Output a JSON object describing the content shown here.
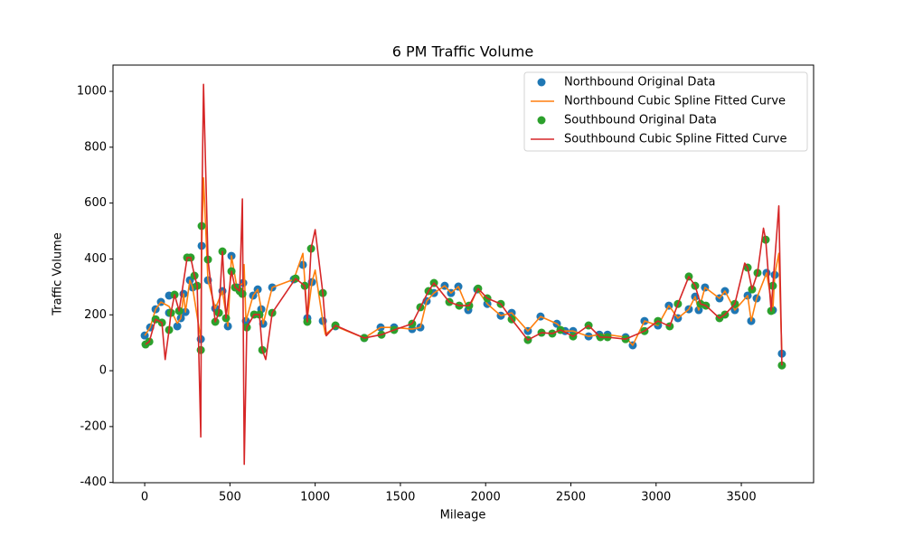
{
  "chart_data": {
    "type": "scatter",
    "title": "6 PM Traffic Volume",
    "x_label": "Mileage",
    "y_label": "Traffic Volume",
    "xlim": [
      -186,
      3924
    ],
    "ylim": [
      -401,
      1094
    ],
    "xticks": [
      0,
      500,
      1000,
      1500,
      2000,
      2500,
      3000,
      3500
    ],
    "yticks": [
      -400,
      -200,
      0,
      200,
      400,
      600,
      800,
      1000
    ],
    "legend": "upper right",
    "series": [
      {
        "name": "Northbound Original Data",
        "type": "scatter",
        "color": "#1f77b4",
        "x": [
          0,
          32,
          64,
          95,
          143,
          143,
          191,
          212,
          228,
          239,
          265,
          281,
          329,
          334,
          371,
          414,
          456,
          488,
          509,
          541,
          578,
          594,
          636,
          663,
          684,
          695,
          748,
          875,
          928,
          954,
          981,
          1045,
          1119,
          1288,
          1384,
          1463,
          1569,
          1617,
          1654,
          1697,
          1760,
          1797,
          1840,
          1898,
          1951,
          2010,
          2089,
          2153,
          2248,
          2322,
          2418,
          2466,
          2513,
          2604,
          2667,
          2715,
          2821,
          2863,
          2932,
          3011,
          3075,
          3128,
          3192,
          3229,
          3250,
          3287,
          3372,
          3404,
          3462,
          3537,
          3558,
          3590,
          3648,
          3685,
          3696,
          3738
        ],
        "values": [
          126,
          155,
          220,
          246,
          269,
          207,
          159,
          188,
          275,
          210,
          324,
          298,
          113,
          447,
          324,
          223,
          285,
          159,
          411,
          298,
          314,
          178,
          269,
          291,
          220,
          168,
          298,
          327,
          379,
          188,
          317,
          178,
          159,
          117,
          155,
          155,
          149,
          155,
          249,
          278,
          304,
          278,
          301,
          217,
          291,
          239,
          197,
          207,
          142,
          194,
          168,
          142,
          142,
          123,
          129,
          129,
          120,
          91,
          178,
          162,
          233,
          188,
          220,
          265,
          217,
          298,
          259,
          285,
          217,
          269,
          178,
          259,
          350,
          217,
          343,
          61
        ]
      },
      {
        "name": "Northbound Cubic Spline Fitted Curve",
        "type": "line",
        "color": "#ff7f0e",
        "x": [
          0,
          32,
          64,
          95,
          143,
          191,
          212,
          228,
          239,
          265,
          281,
          329,
          334,
          345,
          371,
          414,
          456,
          488,
          509,
          541,
          578,
          583,
          594,
          636,
          663,
          684,
          695,
          748,
          875,
          928,
          954,
          981,
          1000,
          1045,
          1060,
          1119,
          1288,
          1384,
          1463,
          1569,
          1617,
          1654,
          1697,
          1760,
          1797,
          1840,
          1898,
          1951,
          2010,
          2089,
          2153,
          2248,
          2322,
          2418,
          2466,
          2513,
          2604,
          2667,
          2715,
          2821,
          2863,
          2932,
          3011,
          3075,
          3128,
          3192,
          3229,
          3250,
          3287,
          3372,
          3404,
          3462,
          3537,
          3558,
          3590,
          3648,
          3685,
          3696,
          3720,
          3738
        ],
        "values": [
          126,
          155,
          220,
          246,
          230,
          170,
          188,
          275,
          210,
          324,
          298,
          113,
          447,
          690,
          324,
          223,
          285,
          159,
          411,
          298,
          314,
          380,
          178,
          269,
          291,
          220,
          168,
          298,
          327,
          420,
          188,
          317,
          360,
          178,
          130,
          159,
          117,
          155,
          155,
          149,
          155,
          249,
          278,
          304,
          278,
          301,
          217,
          291,
          239,
          197,
          207,
          142,
          194,
          168,
          142,
          142,
          123,
          129,
          129,
          120,
          91,
          178,
          162,
          233,
          188,
          220,
          265,
          217,
          298,
          259,
          285,
          217,
          269,
          178,
          259,
          350,
          217,
          343,
          420,
          61
        ]
      },
      {
        "name": "Southbound Original Data",
        "type": "scatter",
        "color": "#2ca02c",
        "x": [
          5,
          27,
          64,
          101,
          143,
          154,
          175,
          202,
          249,
          270,
          292,
          308,
          329,
          334,
          371,
          414,
          435,
          456,
          477,
          509,
          530,
          557,
          573,
          599,
          642,
          673,
          690,
          748,
          885,
          939,
          954,
          976,
          1045,
          1119,
          1288,
          1389,
          1463,
          1569,
          1617,
          1665,
          1697,
          1787,
          1845,
          1903,
          1956,
          2010,
          2089,
          2153,
          2248,
          2328,
          2391,
          2439,
          2513,
          2604,
          2673,
          2715,
          2821,
          2932,
          3011,
          3080,
          3128,
          3192,
          3229,
          3261,
          3292,
          3372,
          3404,
          3462,
          3537,
          3563,
          3595,
          3643,
          3675,
          3685,
          3738
        ],
        "values": [
          94,
          104,
          184,
          172,
          146,
          207,
          272,
          214,
          405,
          405,
          340,
          304,
          74,
          518,
          398,
          175,
          207,
          427,
          188,
          356,
          298,
          285,
          275,
          155,
          201,
          201,
          74,
          207,
          330,
          304,
          175,
          437,
          278,
          162,
          117,
          129,
          146,
          168,
          227,
          285,
          314,
          246,
          233,
          233,
          294,
          259,
          239,
          184,
          110,
          136,
          133,
          146,
          123,
          162,
          120,
          120,
          113,
          142,
          178,
          159,
          239,
          337,
          304,
          239,
          233,
          188,
          201,
          239,
          369,
          291,
          350,
          469,
          214,
          304,
          19
        ]
      },
      {
        "name": "Southbound Cubic Spline Fitted Curve",
        "type": "line",
        "color": "#d62728",
        "x": [
          5,
          27,
          64,
          101,
          120,
          143,
          154,
          175,
          202,
          249,
          270,
          292,
          308,
          329,
          334,
          345,
          371,
          414,
          435,
          456,
          477,
          509,
          530,
          557,
          573,
          584,
          599,
          642,
          673,
          690,
          710,
          748,
          885,
          939,
          954,
          976,
          1000,
          1045,
          1065,
          1119,
          1288,
          1389,
          1463,
          1569,
          1617,
          1665,
          1697,
          1787,
          1845,
          1903,
          1956,
          2010,
          2089,
          2153,
          2248,
          2328,
          2391,
          2439,
          2513,
          2604,
          2673,
          2715,
          2821,
          2932,
          3011,
          3080,
          3128,
          3192,
          3229,
          3261,
          3292,
          3372,
          3404,
          3462,
          3520,
          3537,
          3563,
          3595,
          3630,
          3643,
          3675,
          3685,
          3720,
          3738
        ],
        "values": [
          94,
          104,
          184,
          172,
          40,
          146,
          207,
          272,
          214,
          405,
          405,
          340,
          304,
          -237,
          518,
          1025,
          398,
          175,
          207,
          427,
          188,
          356,
          298,
          285,
          615,
          -335,
          155,
          201,
          201,
          74,
          40,
          207,
          330,
          304,
          175,
          437,
          505,
          278,
          125,
          162,
          117,
          129,
          146,
          168,
          227,
          285,
          314,
          246,
          233,
          233,
          294,
          259,
          239,
          184,
          110,
          136,
          133,
          146,
          123,
          162,
          120,
          120,
          113,
          142,
          178,
          159,
          239,
          337,
          304,
          239,
          233,
          188,
          201,
          239,
          385,
          369,
          291,
          350,
          510,
          469,
          214,
          304,
          590,
          19
        ]
      }
    ]
  }
}
